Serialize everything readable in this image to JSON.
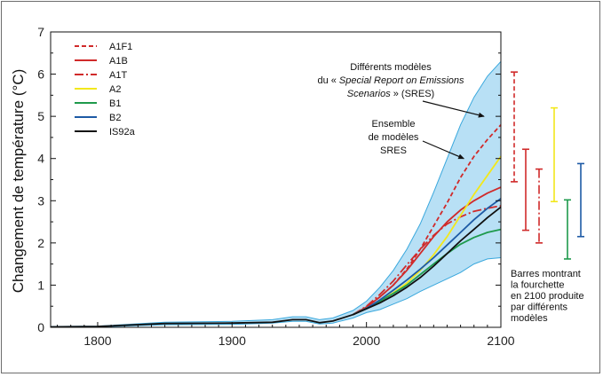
{
  "chart_data": {
    "type": "line",
    "xlabel": "",
    "ylabel": "Changement de température (°C)",
    "xlim": [
      1765,
      2100
    ],
    "ylim": [
      0,
      7
    ],
    "xticks": [
      "1800",
      "1900",
      "2000",
      "2100"
    ],
    "yticks": [
      "0",
      "1",
      "2",
      "3",
      "4",
      "5",
      "6",
      "7"
    ],
    "grid": false,
    "legend_position": "top-left",
    "band": {
      "name": "Ensemble de modèles SRES",
      "color": "#b8e0f5",
      "edge_color": "#3aa8dd",
      "x": [
        1765,
        1800,
        1850,
        1900,
        1930,
        1945,
        1955,
        1965,
        1975,
        1990,
        2000,
        2010,
        2020,
        2030,
        2040,
        2050,
        2060,
        2070,
        2080,
        2090,
        2100
      ],
      "upper": [
        0.02,
        0.03,
        0.12,
        0.14,
        0.18,
        0.25,
        0.25,
        0.18,
        0.22,
        0.4,
        0.62,
        0.95,
        1.35,
        1.85,
        2.45,
        3.2,
        4.0,
        4.8,
        5.45,
        5.95,
        6.3
      ],
      "lower": [
        0.0,
        0.01,
        0.06,
        0.07,
        0.1,
        0.14,
        0.14,
        0.08,
        0.1,
        0.22,
        0.35,
        0.42,
        0.55,
        0.68,
        0.85,
        1.0,
        1.15,
        1.3,
        1.5,
        1.62,
        1.65
      ]
    },
    "series": [
      {
        "name": "A1F1",
        "color": "#d02a2a",
        "dash": "5,3",
        "x": [
          1990,
          2000,
          2010,
          2020,
          2030,
          2040,
          2050,
          2060,
          2070,
          2080,
          2090,
          2100
        ],
        "values": [
          0.3,
          0.48,
          0.72,
          1.0,
          1.38,
          1.85,
          2.4,
          2.95,
          3.55,
          4.05,
          4.45,
          4.8
        ]
      },
      {
        "name": "A1B",
        "color": "#d02a2a",
        "dash": "",
        "x": [
          1990,
          2000,
          2010,
          2020,
          2030,
          2040,
          2050,
          2060,
          2070,
          2080,
          2090,
          2100
        ],
        "values": [
          0.3,
          0.48,
          0.72,
          1.0,
          1.35,
          1.75,
          2.15,
          2.5,
          2.78,
          3.0,
          3.18,
          3.32
        ]
      },
      {
        "name": "A1T",
        "color": "#d02a2a",
        "dash": "10,3,2,3",
        "x": [
          1990,
          2000,
          2010,
          2020,
          2030,
          2040,
          2050,
          2060,
          2070,
          2080,
          2090,
          2100
        ],
        "values": [
          0.3,
          0.5,
          0.78,
          1.1,
          1.48,
          1.85,
          2.18,
          2.45,
          2.62,
          2.75,
          2.82,
          2.88
        ]
      },
      {
        "name": "A2",
        "color": "#f2e81c",
        "dash": "",
        "x": [
          1990,
          2000,
          2010,
          2020,
          2030,
          2040,
          2050,
          2060,
          2070,
          2080,
          2090,
          2100
        ],
        "values": [
          0.3,
          0.45,
          0.62,
          0.82,
          1.05,
          1.35,
          1.72,
          2.15,
          2.65,
          3.15,
          3.6,
          4.05
        ]
      },
      {
        "name": "B1",
        "color": "#1e9a4c",
        "dash": "",
        "x": [
          1990,
          2000,
          2010,
          2020,
          2030,
          2040,
          2050,
          2060,
          2070,
          2080,
          2090,
          2100
        ],
        "values": [
          0.3,
          0.45,
          0.62,
          0.8,
          1.0,
          1.25,
          1.5,
          1.75,
          1.97,
          2.13,
          2.25,
          2.32
        ]
      },
      {
        "name": "B2",
        "color": "#1d5aa5",
        "dash": "",
        "x": [
          1990,
          2000,
          2010,
          2020,
          2030,
          2040,
          2050,
          2060,
          2070,
          2080,
          2090,
          2100
        ],
        "values": [
          0.3,
          0.45,
          0.65,
          0.88,
          1.12,
          1.38,
          1.65,
          1.95,
          2.25,
          2.55,
          2.82,
          3.05
        ]
      },
      {
        "name": "IS92a",
        "color": "#111111",
        "dash": "",
        "x": [
          1765,
          1800,
          1850,
          1900,
          1930,
          1945,
          1955,
          1965,
          1975,
          1990,
          2000,
          2010,
          2020,
          2030,
          2040,
          2050,
          2060,
          2070,
          2080,
          2090,
          2100
        ],
        "values": [
          0.01,
          0.02,
          0.09,
          0.1,
          0.12,
          0.18,
          0.18,
          0.11,
          0.15,
          0.3,
          0.44,
          0.58,
          0.75,
          0.95,
          1.18,
          1.45,
          1.75,
          2.05,
          2.32,
          2.6,
          2.85
        ]
      }
    ],
    "range_bars": [
      {
        "name": "A1F1",
        "color": "#d02a2a",
        "dash": "5,3",
        "low": 3.45,
        "high": 6.05
      },
      {
        "name": "A1B",
        "color": "#d02a2a",
        "dash": "",
        "low": 2.3,
        "high": 4.22
      },
      {
        "name": "A1T",
        "color": "#d02a2a",
        "dash": "10,3,2,3",
        "low": 2.0,
        "high": 3.75
      },
      {
        "name": "A2",
        "color": "#f2e81c",
        "dash": "",
        "low": 2.98,
        "high": 5.2
      },
      {
        "name": "B1",
        "color": "#1e9a4c",
        "dash": "",
        "low": 1.62,
        "high": 3.02
      },
      {
        "name": "B2",
        "color": "#1d5aa5",
        "dash": "",
        "low": 2.15,
        "high": 3.88
      }
    ],
    "annotations": [
      {
        "lines": [
          "Différents modèles",
          "du « Special Report on Emissions",
          "Scenarios » (SRES)"
        ],
        "target_x": 2090,
        "target_y": 5.0
      },
      {
        "lines": [
          "Ensemble",
          "de modèles",
          "SRES"
        ],
        "target_x": 2075,
        "target_y": 4.0
      },
      {
        "lines": [
          "Barres montrant",
          "la fourchette",
          "en 2100 produite",
          "par  différents",
          "modèles"
        ]
      }
    ]
  }
}
